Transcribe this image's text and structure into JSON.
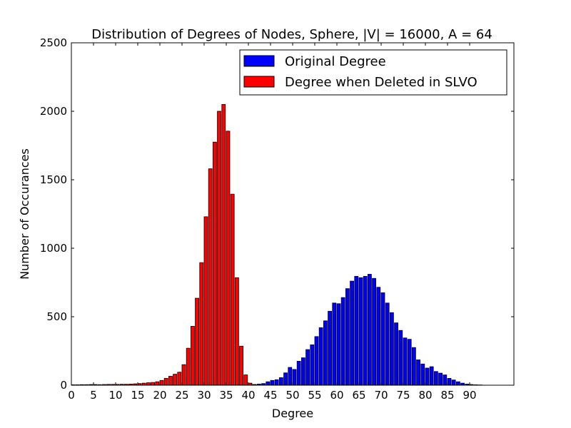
{
  "chart_data": {
    "type": "bar",
    "title": "Distribution of Degrees of Nodes, Sphere, |V| = 16000, A = 64",
    "xlabel": "Degree",
    "ylabel": "Number of Occurances",
    "xlim": [
      0,
      100
    ],
    "ylim": [
      0,
      2500
    ],
    "xticks": [
      0,
      5,
      10,
      15,
      20,
      25,
      30,
      35,
      40,
      45,
      50,
      55,
      60,
      65,
      70,
      75,
      80,
      85,
      90
    ],
    "yticks": [
      0,
      500,
      1000,
      1500,
      2000,
      2500
    ],
    "grid": false,
    "legend_position": "top-right",
    "series": [
      {
        "name": "Original Degree",
        "color": "#0000ff",
        "x": [
          38,
          39,
          40,
          41,
          42,
          43,
          44,
          45,
          46,
          47,
          48,
          49,
          50,
          51,
          52,
          53,
          54,
          55,
          56,
          57,
          58,
          59,
          60,
          61,
          62,
          63,
          64,
          65,
          66,
          67,
          68,
          69,
          70,
          71,
          72,
          73,
          74,
          75,
          76,
          77,
          78,
          79,
          80,
          81,
          82,
          83,
          84,
          85,
          86,
          87,
          88,
          89,
          90,
          91,
          92
        ],
        "values": [
          1,
          2,
          3,
          5,
          8,
          12,
          25,
          35,
          40,
          55,
          90,
          130,
          115,
          175,
          200,
          260,
          295,
          355,
          420,
          470,
          540,
          600,
          595,
          640,
          705,
          760,
          795,
          785,
          795,
          810,
          780,
          715,
          675,
          600,
          530,
          455,
          400,
          345,
          335,
          275,
          185,
          155,
          125,
          135,
          100,
          88,
          75,
          50,
          38,
          25,
          15,
          8,
          5,
          3,
          2
        ]
      },
      {
        "name": "Degree when Deleted in SLVO",
        "color": "#ff0000",
        "x": [
          0,
          1,
          2,
          3,
          4,
          5,
          6,
          7,
          8,
          9,
          10,
          11,
          12,
          13,
          14,
          15,
          16,
          17,
          18,
          19,
          20,
          21,
          22,
          23,
          24,
          25,
          26,
          27,
          28,
          29,
          30,
          31,
          32,
          33,
          34,
          35,
          36,
          37,
          38,
          39,
          40,
          41
        ],
        "values": [
          3,
          3,
          4,
          4,
          5,
          5,
          4,
          5,
          6,
          6,
          6,
          7,
          7,
          8,
          10,
          12,
          15,
          18,
          20,
          25,
          35,
          50,
          65,
          80,
          95,
          150,
          270,
          430,
          635,
          895,
          1230,
          1580,
          1775,
          2000,
          2050,
          1855,
          1395,
          785,
          285,
          75,
          15,
          5
        ]
      }
    ]
  }
}
